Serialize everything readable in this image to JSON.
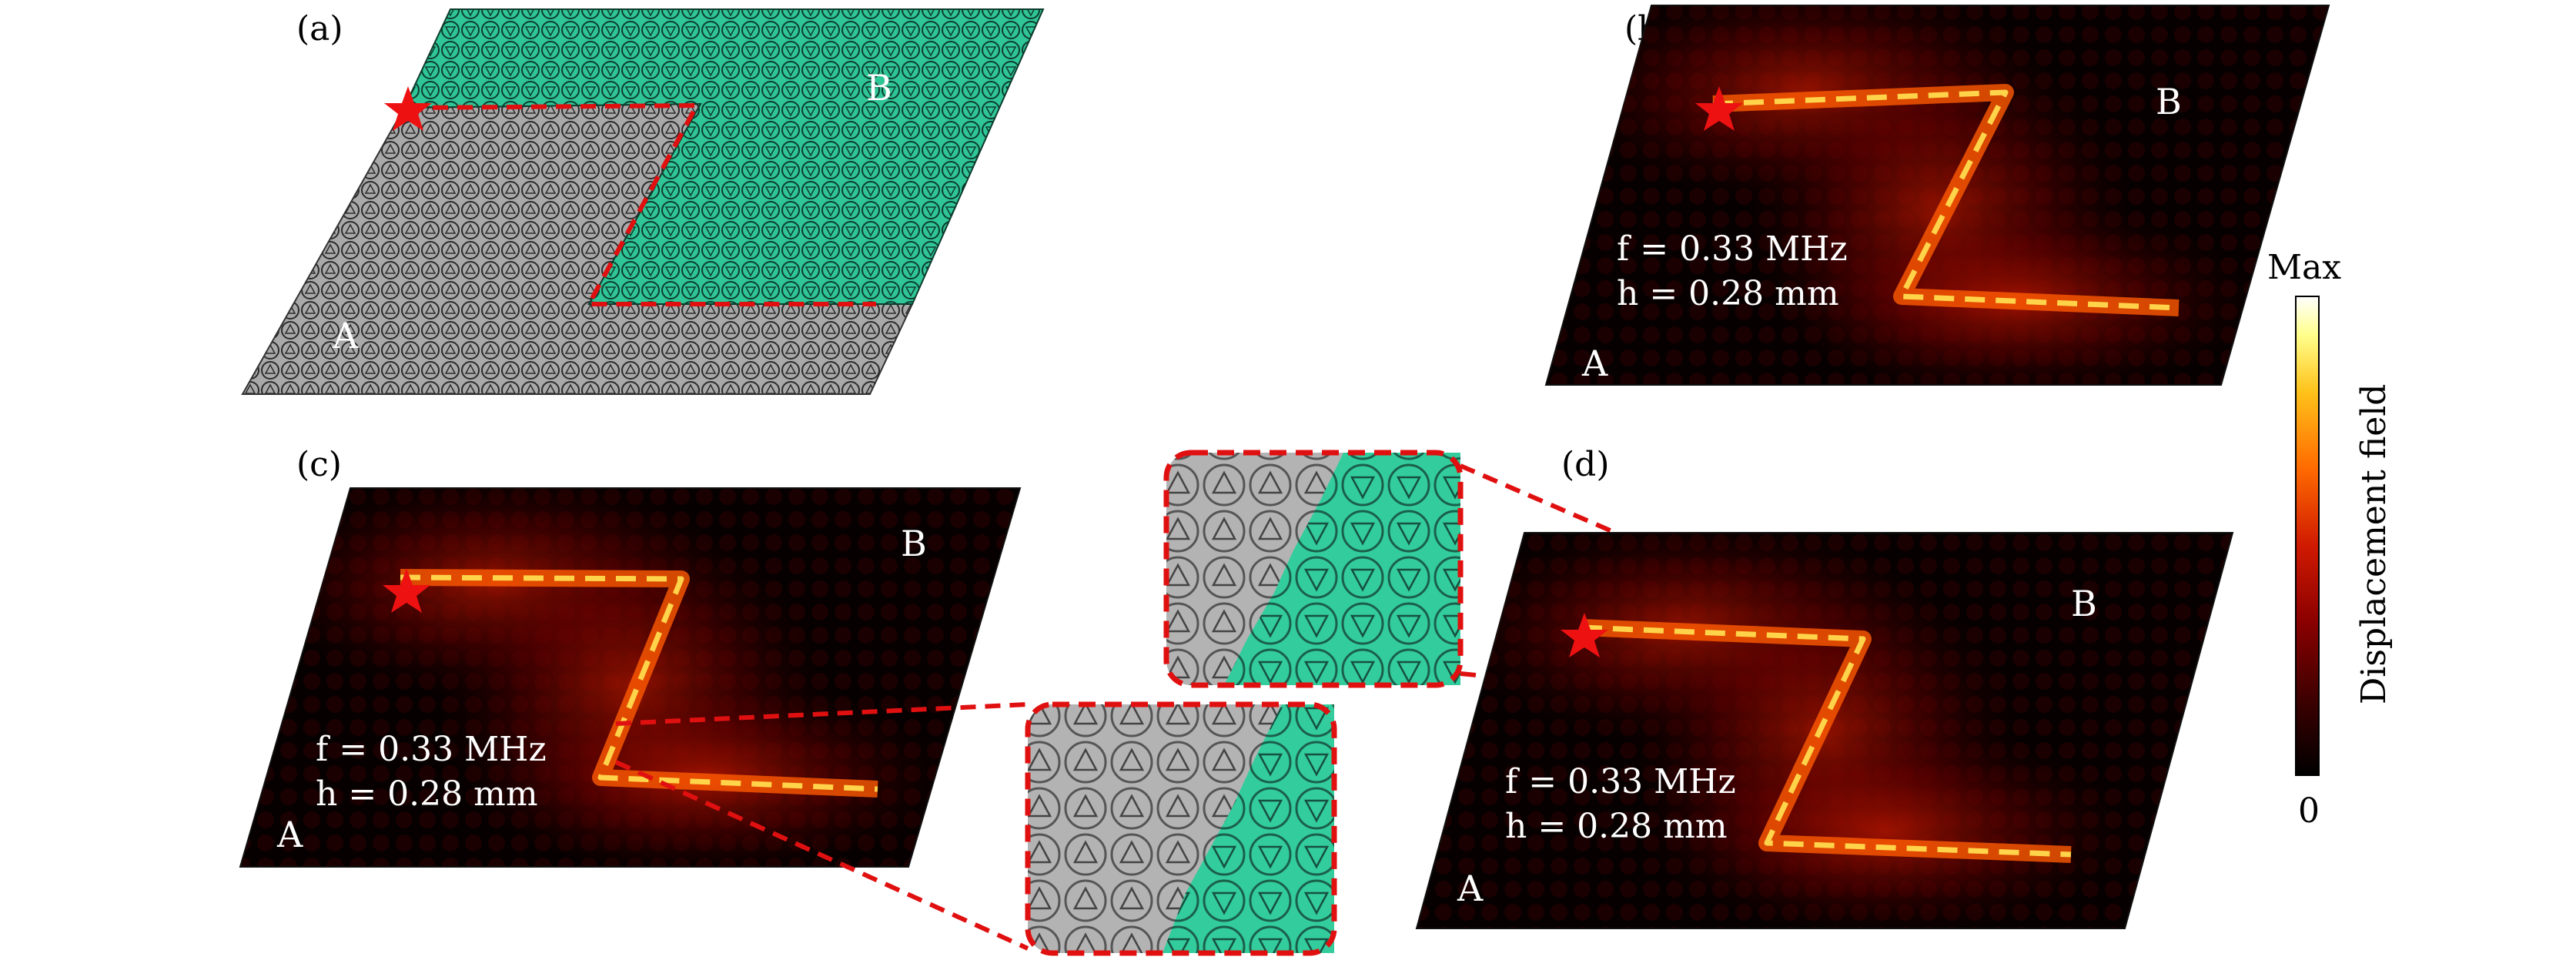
{
  "panels": {
    "a": {
      "label": "(a)",
      "region_a": "A",
      "region_b": "B"
    },
    "b": {
      "label": "(b)",
      "region_a": "A",
      "region_b": "B",
      "freq_text": "f = 0.33 MHz",
      "height_text": "h = 0.28 mm"
    },
    "c": {
      "label": "(c)",
      "region_a": "A",
      "region_b": "B",
      "freq_text": "f = 0.33 MHz",
      "height_text": "h = 0.28 mm"
    },
    "d": {
      "label": "(d)",
      "region_a": "A",
      "region_b": "B",
      "freq_text": "f = 0.33 MHz",
      "height_text": "h = 0.28 mm"
    }
  },
  "colorbar": {
    "max_label": "Max",
    "min_label": "0",
    "title": "Displacement field",
    "stops": [
      "#000000",
      "#3a0000",
      "#8a0000",
      "#d01a00",
      "#ff6a00",
      "#ffc21a",
      "#ffff8c",
      "#ffffff"
    ]
  },
  "colors": {
    "region_a": "#a9a9a9",
    "region_b": "#2fc596",
    "interface_dash": "#e01010",
    "source_star": "#ee1111",
    "field_background": "#060000"
  },
  "icons": {
    "source": "star-icon"
  }
}
